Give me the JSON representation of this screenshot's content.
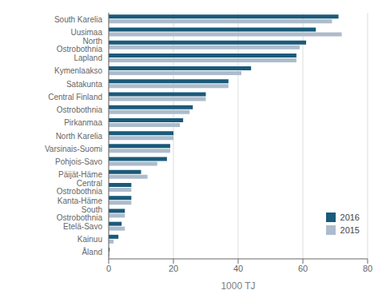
{
  "chart_data": {
    "type": "bar",
    "orientation": "horizontal",
    "categories": [
      "South Karelia",
      "Uusimaa",
      "North Ostrobothnia",
      "Lapland",
      "Kymenlaakso",
      "Satakunta",
      "Central Finland",
      "Ostrobothnia",
      "Pirkanmaa",
      "North Karelia",
      "Varsinais-Suomi",
      "Pohjois-Savo",
      "Päijät-Häme",
      "Central Ostrobothnia",
      "Kanta-Häme",
      "South Ostrobothnia",
      "Etelä-Savo",
      "Kainuu",
      "Åland"
    ],
    "series": [
      {
        "name": "2016",
        "color": "#1a5a7a",
        "values": [
          71,
          64,
          61,
          58,
          44,
          37,
          30,
          26,
          23,
          20,
          19,
          18,
          10,
          7,
          7,
          5,
          4,
          3,
          0.3
        ]
      },
      {
        "name": "2015",
        "color": "#adbccc",
        "values": [
          69,
          72,
          59,
          58,
          41,
          37,
          30,
          25,
          22,
          20,
          19,
          15,
          12,
          7,
          7,
          5,
          5,
          1.5,
          0.3
        ]
      }
    ],
    "xlabel": "1000 TJ",
    "xlim": [
      0,
      80
    ],
    "xticks": [
      0,
      20,
      40,
      60,
      80
    ],
    "grid": true,
    "legend": "lower right"
  }
}
